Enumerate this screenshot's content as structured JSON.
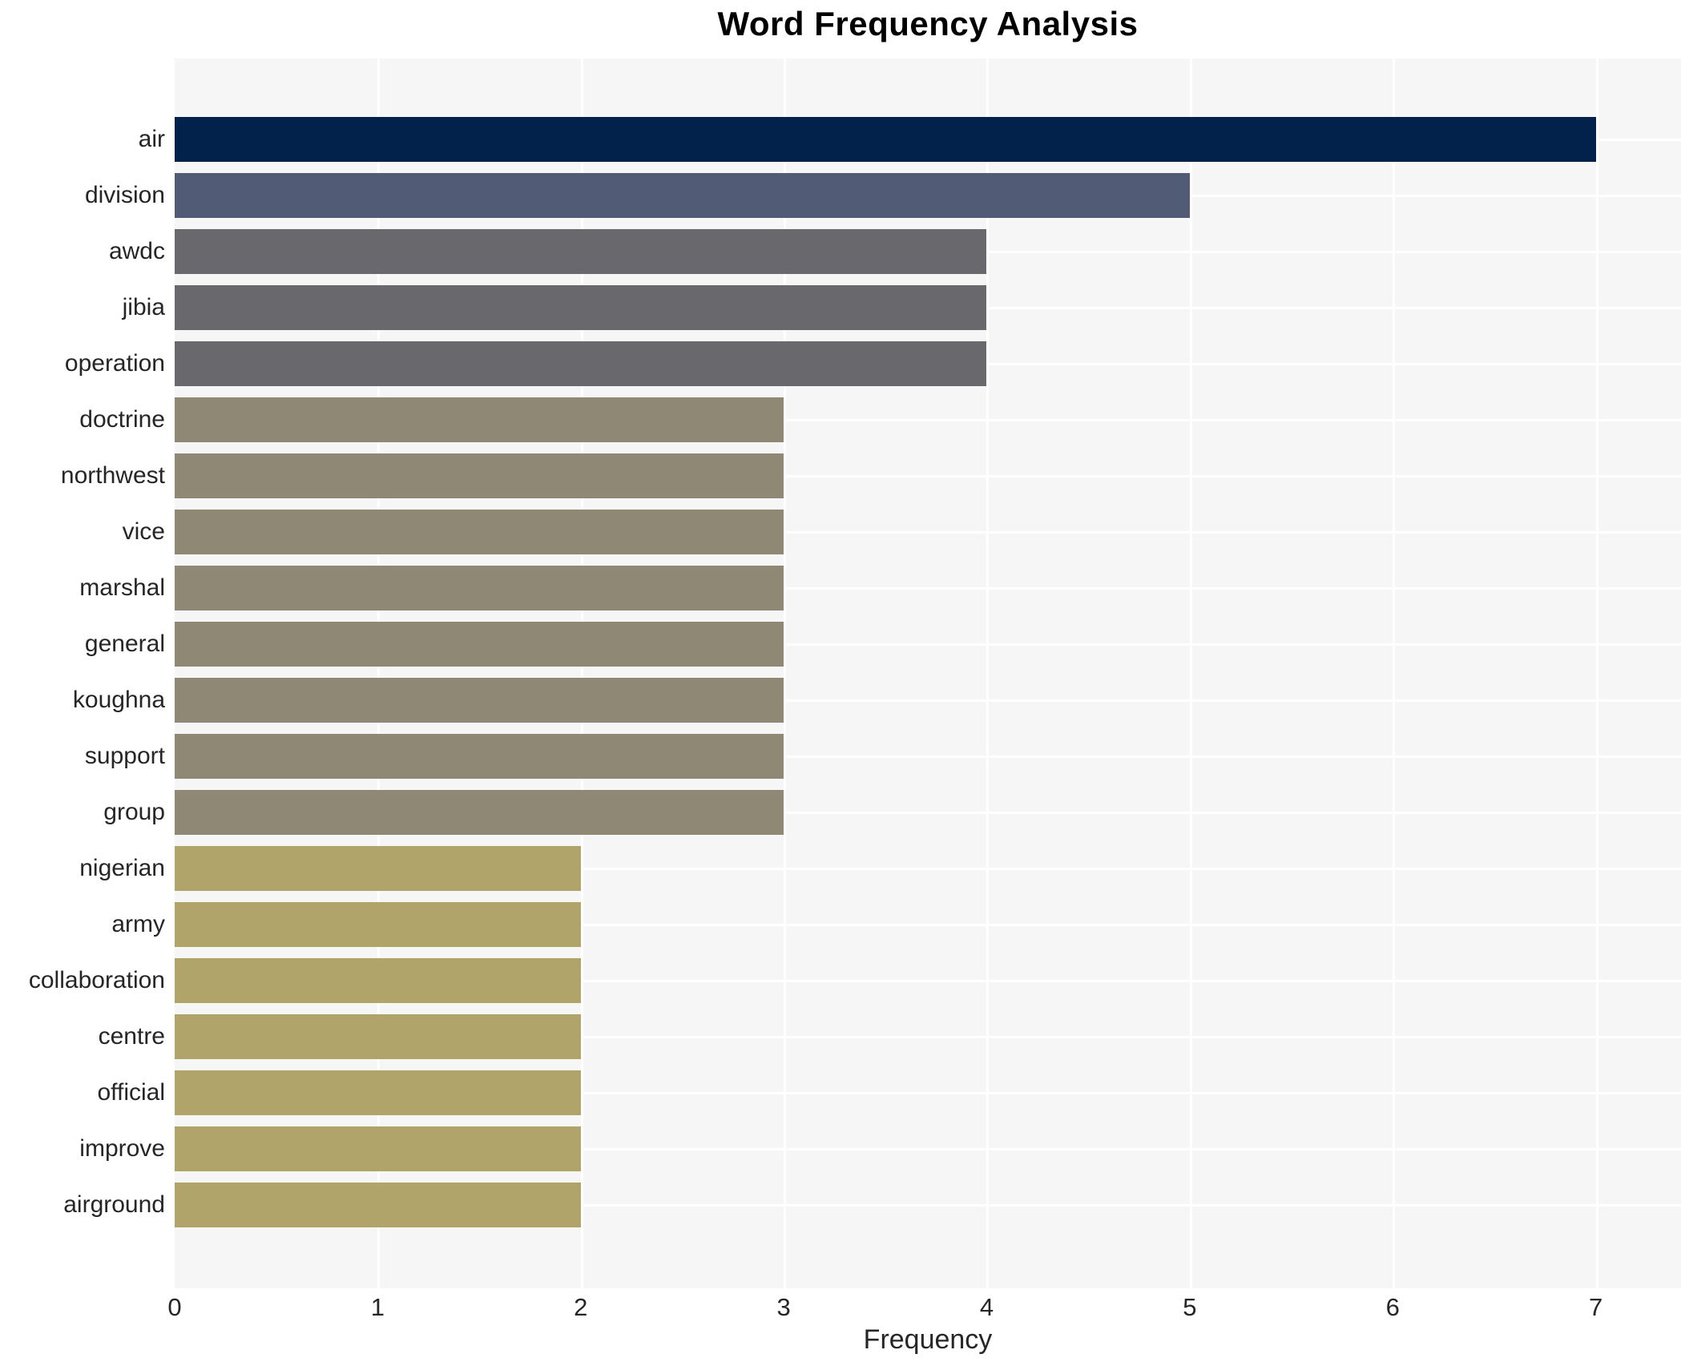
{
  "page": {
    "title": "Word Frequency Analysis"
  },
  "chart_data": {
    "type": "bar",
    "orientation": "horizontal",
    "title": "Word Frequency Analysis",
    "xlabel": "Frequency",
    "ylabel": "",
    "categories": [
      "air",
      "division",
      "awdc",
      "jibia",
      "operation",
      "doctrine",
      "northwest",
      "vice",
      "marshal",
      "general",
      "koughna",
      "support",
      "group",
      "nigerian",
      "army",
      "collaboration",
      "centre",
      "official",
      "improve",
      "airground"
    ],
    "values": [
      7,
      5,
      4,
      4,
      4,
      3,
      3,
      3,
      3,
      3,
      3,
      3,
      3,
      2,
      2,
      2,
      2,
      2,
      2,
      2
    ],
    "bar_colors": [
      "#02224c",
      "#515b76",
      "#69696d",
      "#69696d",
      "#69696d",
      "#8e8875",
      "#8e8875",
      "#8e8875",
      "#8e8875",
      "#8e8875",
      "#8e8875",
      "#8e8875",
      "#8e8875",
      "#b0a46b",
      "#b0a46b",
      "#b0a46b",
      "#b0a46b",
      "#b0a46b",
      "#b0a46b",
      "#b0a46b"
    ],
    "value_color_map": {
      "7": "#02224c",
      "5": "#515b76",
      "4": "#69696d",
      "3": "#8e8875",
      "2": "#b0a46b"
    },
    "xticks": [
      0,
      1,
      2,
      3,
      4,
      5,
      6,
      7
    ],
    "xlim": [
      0,
      7.42
    ],
    "grid": true,
    "legend_position": "none",
    "plot_background": "#f6f6f7",
    "grid_color": "#ffffff"
  }
}
